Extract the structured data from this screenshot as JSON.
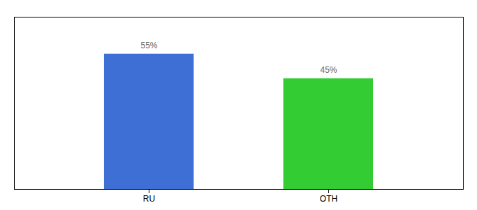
{
  "chart_data": {
    "type": "bar",
    "categories": [
      "RU",
      "OTH"
    ],
    "values": [
      55,
      45
    ],
    "value_labels": [
      "55%",
      "45%"
    ],
    "colors": [
      "#3d6fd4",
      "#33cc33"
    ],
    "ylim": [
      0,
      70
    ],
    "grid": false,
    "data_labels": true,
    "tick_labels": "x"
  }
}
